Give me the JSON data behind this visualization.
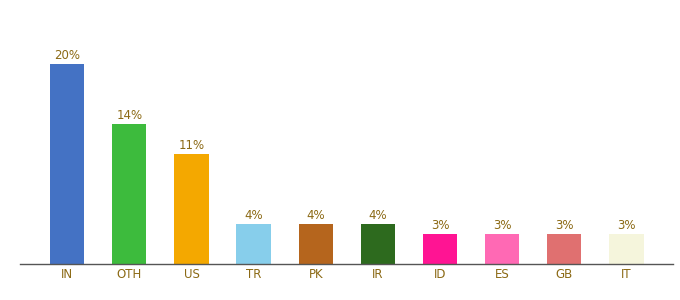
{
  "categories": [
    "IN",
    "OTH",
    "US",
    "TR",
    "PK",
    "IR",
    "ID",
    "ES",
    "GB",
    "IT"
  ],
  "values": [
    20,
    14,
    11,
    4,
    4,
    4,
    3,
    3,
    3,
    3
  ],
  "bar_colors": [
    "#4472c4",
    "#3dbb3d",
    "#f4a800",
    "#87ceeb",
    "#b5651d",
    "#2d6a1e",
    "#ff1493",
    "#ff69b4",
    "#e07070",
    "#f5f5dc"
  ],
  "ylim": [
    0,
    24
  ],
  "background_color": "#ffffff",
  "label_color": "#8B6914",
  "label_fontsize": 8.5,
  "tick_fontsize": 8.5,
  "bar_width": 0.55
}
